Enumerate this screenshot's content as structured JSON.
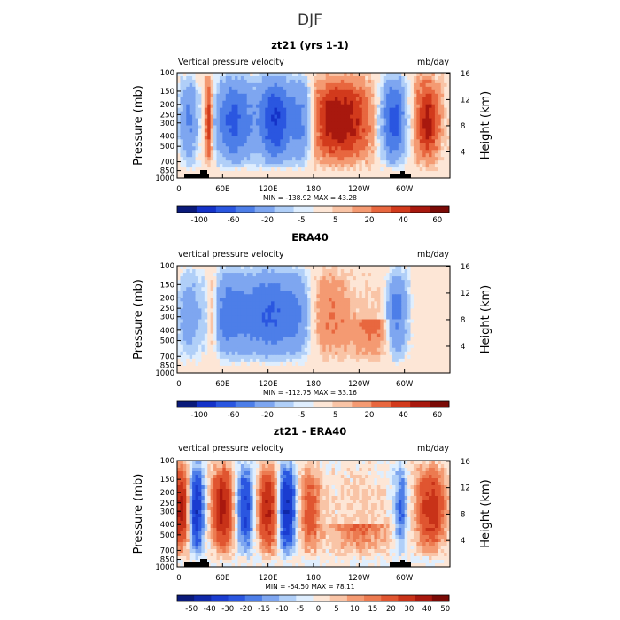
{
  "figure": {
    "title": "DJF"
  },
  "chart_data": [
    {
      "type": "heatmap",
      "title": "zt21 (yrs 1-1)",
      "left_label": "Vertical pressure velocity",
      "units": "mb/day",
      "xlabel": "",
      "ylabel": "Pressure (mb)",
      "y2label": "Height (km)",
      "x_ticks": [
        "0",
        "60E",
        "120E",
        "180",
        "120W",
        "60W"
      ],
      "y_ticks": [
        "100",
        "150",
        "200",
        "250",
        "300",
        "400",
        "500",
        "700",
        "850",
        "1000"
      ],
      "y2_ticks": [
        "16",
        "12",
        "8",
        "4"
      ],
      "stats": "MIN = -138.92   MAX =  43.28",
      "colorbar_labels": [
        "-100",
        "-60",
        "-20",
        "-5",
        "5",
        "20",
        "40",
        "60"
      ],
      "ylim_mb": [
        1000,
        100
      ],
      "xlim_deg": [
        0,
        360
      ],
      "colors": [
        "#0a1a7a",
        "#1432c8",
        "#2a56e0",
        "#4d7ee8",
        "#7ea6f0",
        "#b0cff8",
        "#dfeefe",
        "#fde6d6",
        "#f9c4a6",
        "#f49a72",
        "#e8673f",
        "#d23a1c",
        "#a8180e",
        "#7a0a06"
      ]
    },
    {
      "type": "heatmap",
      "title": "ERA40",
      "left_label": "vertical pressure velocity",
      "units": "mb/day",
      "xlabel": "",
      "ylabel": "Pressure (mb)",
      "y2label": "Height (km)",
      "x_ticks": [
        "0",
        "60E",
        "120E",
        "180",
        "120W",
        "60W"
      ],
      "y_ticks": [
        "100",
        "150",
        "200",
        "250",
        "300",
        "400",
        "500",
        "700",
        "850",
        "1000"
      ],
      "y2_ticks": [
        "16",
        "12",
        "8",
        "4"
      ],
      "stats": "MIN = -112.75   MAX =  33.16",
      "colorbar_labels": [
        "-100",
        "-60",
        "-20",
        "-5",
        "5",
        "20",
        "40",
        "60"
      ],
      "ylim_mb": [
        1000,
        100
      ],
      "xlim_deg": [
        0,
        360
      ],
      "colors": [
        "#0a1a7a",
        "#1432c8",
        "#2a56e0",
        "#4d7ee8",
        "#7ea6f0",
        "#b0cff8",
        "#dfeefe",
        "#fde6d6",
        "#f9c4a6",
        "#f49a72",
        "#e8673f",
        "#d23a1c",
        "#a8180e",
        "#7a0a06"
      ]
    },
    {
      "type": "heatmap",
      "title": "zt21 - ERA40",
      "left_label": "vertical pressure velocity",
      "units": "mb/day",
      "xlabel": "",
      "ylabel": "Pressure (mb)",
      "y2label": "Height (km)",
      "x_ticks": [
        "0",
        "60E",
        "120E",
        "180",
        "120W",
        "60W"
      ],
      "y_ticks": [
        "100",
        "150",
        "200",
        "250",
        "300",
        "400",
        "500",
        "700",
        "850",
        "1000"
      ],
      "y2_ticks": [
        "16",
        "12",
        "8",
        "4"
      ],
      "stats": "MIN = -64.50   MAX =  78.11",
      "colorbar_labels": [
        "-50",
        "-40",
        "-30",
        "-20",
        "-15",
        "-10",
        "-5",
        "0",
        "5",
        "10",
        "15",
        "20",
        "30",
        "40",
        "50"
      ],
      "ylim_mb": [
        1000,
        100
      ],
      "xlim_deg": [
        0,
        360
      ],
      "colors": [
        "#0a1a7a",
        "#0f28a8",
        "#1a3cd0",
        "#2a56e0",
        "#4d7ee8",
        "#7ea6f0",
        "#b0cff8",
        "#dfeefe",
        "#fde6d6",
        "#f9c4a6",
        "#f49a72",
        "#ec7a50",
        "#e05530",
        "#c83218",
        "#a8180e",
        "#7a0a06"
      ]
    }
  ]
}
